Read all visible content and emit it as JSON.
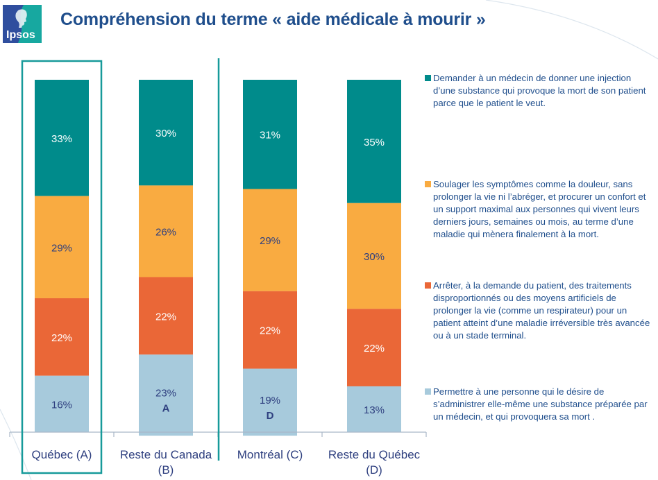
{
  "header": {
    "logo_text": "Ipsos",
    "title": "Compréhension du terme « aide médicale à mourir »"
  },
  "colors": {
    "teal": "#008b8b",
    "orange": "#f9ab41",
    "red_orange": "#ea6737",
    "light_blue": "#a7cadc",
    "title_blue": "#1f4e8c",
    "highlight_frame": "#179a9a",
    "logo_blue": "#2f4e9e",
    "logo_teal": "#17a8a0"
  },
  "chart_data": {
    "type": "bar",
    "stacked": true,
    "title": "Compréhension du terme « aide médicale à mourir »",
    "xlabel": "",
    "ylabel": "",
    "ylim": [
      0,
      100
    ],
    "grid": false,
    "legend_position": "right",
    "categories": [
      "Québec (A)",
      "Reste du Canada (B)",
      "Montréal (C)",
      "Reste du Québec (D)"
    ],
    "highlighted_category": "Québec (A)",
    "separator_after_category": "Reste du Canada (B)",
    "series": [
      {
        "name": "Demander à un médecin de donner une injection d’une substance qui provoque la mort de son patient parce que le patient le veut.",
        "color": "#008b8b",
        "label_color": "#ffffff",
        "values": [
          33,
          30,
          31,
          35
        ],
        "labels": [
          "33%",
          "30%",
          "31%",
          "35%"
        ],
        "significance": [
          "",
          "",
          "",
          ""
        ]
      },
      {
        "name": "Soulager les symptômes comme la douleur, sans prolonger la vie ni l’abréger, et procurer un confort et un support maximal aux personnes qui vivent leurs derniers jours, semaines ou mois, au terme d’une maladie qui mènera finalement à la mort.",
        "color": "#f9ab41",
        "label_color": "#2e3f7f",
        "values": [
          29,
          26,
          29,
          30
        ],
        "labels": [
          "29%",
          "26%",
          "29%",
          "30%"
        ],
        "significance": [
          "",
          "",
          "",
          ""
        ]
      },
      {
        "name": "Arrêter, à la demande du patient, des traitements disproportionnés ou des moyens artificiels de prolonger la vie (comme un respirateur) pour un patient atteint d’une maladie irréversible très avancée ou à un stade terminal.",
        "color": "#ea6737",
        "label_color": "#ffffff",
        "values": [
          22,
          22,
          22,
          22
        ],
        "labels": [
          "22%",
          "22%",
          "22%",
          "22%"
        ],
        "significance": [
          "",
          "",
          "",
          ""
        ]
      },
      {
        "name": "Permettre à une personne qui le désire de s’administrer elle-même une substance préparée par un médecin, et qui provoquera sa mort .",
        "color": "#a7cadc",
        "label_color": "#2e3f7f",
        "values": [
          16,
          23,
          19,
          13
        ],
        "labels": [
          "16%",
          "23%",
          "19%",
          "13%"
        ],
        "significance": [
          "",
          "A",
          "D",
          ""
        ]
      }
    ]
  },
  "category_labels": [
    {
      "line1": "Québec (A)",
      "line2": ""
    },
    {
      "line1": "Reste du Canada",
      "line2": "(B)"
    },
    {
      "line1": "Montréal (C)",
      "line2": ""
    },
    {
      "line1": "Reste du Québec",
      "line2": "(D)"
    }
  ],
  "legend": {
    "items": [
      {
        "text": "Demander à un médecin de donner une injection d’une substance qui provoque la mort de son patient parce que le patient le veut.",
        "color": "#008b8b"
      },
      {
        "text": "Soulager les symptômes comme la douleur, sans prolonger la vie ni l’abréger, et procurer un confort et un support maximal aux personnes qui vivent leurs derniers jours, semaines ou mois, au terme d’une maladie qui mènera finalement à la mort.",
        "color": "#f9ab41"
      },
      {
        "text": "Arrêter, à la demande du patient, des traitements disproportionnés ou des moyens artificiels de prolonger la vie (comme un respirateur) pour un patient atteint d’une maladie irréversible très avancée ou à un stade terminal.",
        "color": "#ea6737"
      },
      {
        "text": "Permettre à une personne qui le désire de s’administrer elle-même une substance préparée par un médecin, et qui provoquera sa mort .",
        "color": "#a7cadc"
      }
    ]
  }
}
